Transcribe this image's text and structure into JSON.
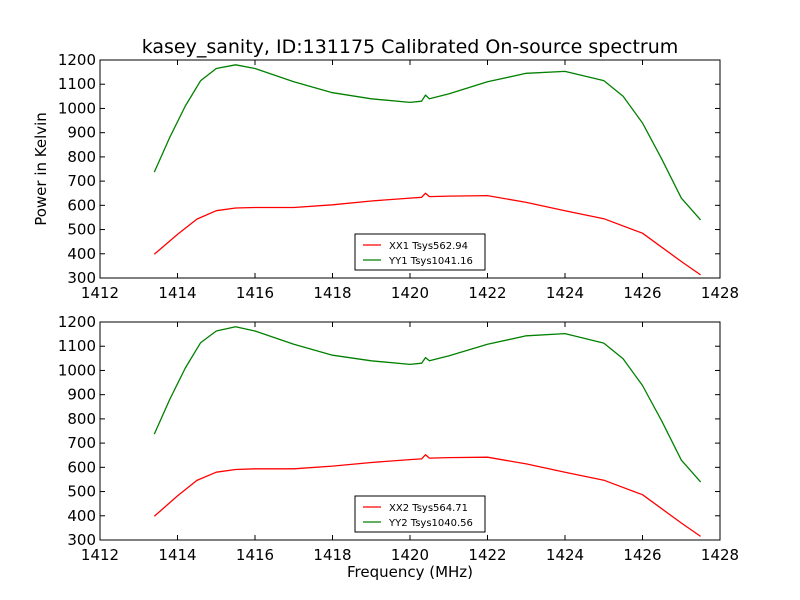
{
  "figure": {
    "title": "kasey_sanity, ID:131175 Calibrated On-source spectrum",
    "ylabel": "Power in Kelvin",
    "xlabel": "Frequency (MHz)"
  },
  "colors": {
    "xx": "#ff0000",
    "yy": "#008000"
  },
  "chart_data": [
    {
      "type": "line",
      "xlim": [
        1412,
        1428
      ],
      "ylim": [
        300,
        1200
      ],
      "xticks": [
        1412,
        1414,
        1416,
        1418,
        1420,
        1422,
        1424,
        1426,
        1428
      ],
      "yticks": [
        300,
        400,
        500,
        600,
        700,
        800,
        900,
        1000,
        1100,
        1200
      ],
      "ylabel": "Power in Kelvin",
      "xlabel": "",
      "legend_position": "lower-center",
      "series": [
        {
          "name": "XX1 Tsys562.94",
          "color": "#ff0000",
          "x": [
            1413.4,
            1414.0,
            1414.5,
            1415.0,
            1415.5,
            1416.0,
            1417.0,
            1418.0,
            1419.0,
            1420.0,
            1420.3,
            1420.4,
            1420.5,
            1421.0,
            1422.0,
            1423.0,
            1424.0,
            1425.0,
            1426.0,
            1427.0,
            1427.5
          ],
          "y": [
            398,
            480,
            543,
            578,
            589,
            591,
            591,
            602,
            618,
            630,
            633,
            650,
            636,
            638,
            640,
            612,
            578,
            545,
            485,
            368,
            313
          ]
        },
        {
          "name": "YY1 Tsys1041.16",
          "color": "#008000",
          "x": [
            1413.4,
            1413.8,
            1414.2,
            1414.6,
            1415.0,
            1415.5,
            1416.0,
            1417.0,
            1418.0,
            1419.0,
            1420.0,
            1420.3,
            1420.4,
            1420.5,
            1421.0,
            1422.0,
            1423.0,
            1424.0,
            1425.0,
            1425.5,
            1426.0,
            1426.5,
            1427.0,
            1427.5
          ],
          "y": [
            737,
            880,
            1010,
            1115,
            1165,
            1180,
            1165,
            1110,
            1065,
            1040,
            1025,
            1030,
            1055,
            1040,
            1060,
            1110,
            1145,
            1153,
            1115,
            1050,
            940,
            790,
            630,
            540
          ]
        }
      ]
    },
    {
      "type": "line",
      "xlim": [
        1412,
        1428
      ],
      "ylim": [
        300,
        1200
      ],
      "xticks": [
        1412,
        1414,
        1416,
        1418,
        1420,
        1422,
        1424,
        1426,
        1428
      ],
      "yticks": [
        300,
        400,
        500,
        600,
        700,
        800,
        900,
        1000,
        1100,
        1200
      ],
      "ylabel": "",
      "xlabel": "Frequency (MHz)",
      "legend_position": "lower-center",
      "series": [
        {
          "name": "XX2 Tsys564.71",
          "color": "#ff0000",
          "x": [
            1413.4,
            1414.0,
            1414.5,
            1415.0,
            1415.5,
            1416.0,
            1417.0,
            1418.0,
            1419.0,
            1420.0,
            1420.3,
            1420.4,
            1420.5,
            1421.0,
            1422.0,
            1423.0,
            1424.0,
            1425.0,
            1426.0,
            1427.0,
            1427.5
          ],
          "y": [
            398,
            482,
            546,
            580,
            591,
            594,
            594,
            605,
            620,
            632,
            635,
            652,
            638,
            640,
            642,
            614,
            580,
            547,
            487,
            370,
            315
          ]
        },
        {
          "name": "YY2 Tsys1040.56",
          "color": "#008000",
          "x": [
            1413.4,
            1413.8,
            1414.2,
            1414.6,
            1415.0,
            1415.5,
            1416.0,
            1417.0,
            1418.0,
            1419.0,
            1420.0,
            1420.3,
            1420.4,
            1420.5,
            1421.0,
            1422.0,
            1423.0,
            1424.0,
            1425.0,
            1425.5,
            1426.0,
            1426.5,
            1427.0,
            1427.5
          ],
          "y": [
            737,
            880,
            1010,
            1115,
            1163,
            1180,
            1163,
            1108,
            1063,
            1040,
            1025,
            1030,
            1053,
            1040,
            1060,
            1108,
            1143,
            1152,
            1113,
            1048,
            938,
            790,
            630,
            540
          ]
        }
      ]
    }
  ]
}
